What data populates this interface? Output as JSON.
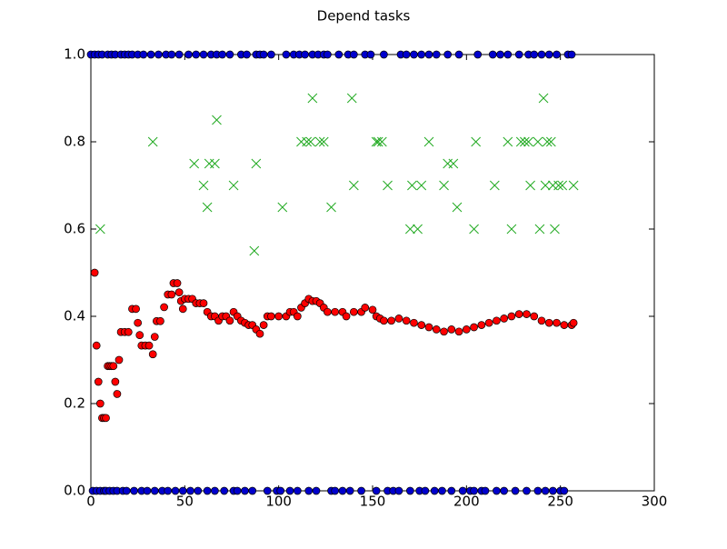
{
  "chart_data": {
    "type": "scatter",
    "title": "Depend tasks",
    "xlim": [
      0,
      300
    ],
    "ylim": [
      0,
      1
    ],
    "xticks": [
      0,
      50,
      100,
      150,
      200,
      250,
      300
    ],
    "yticks": [
      {
        "value": 0,
        "label": "0.0"
      },
      0.2,
      0.4,
      0.6,
      0.8,
      {
        "value": 1,
        "label": "1.0"
      }
    ],
    "grid": false,
    "series": [
      {
        "color": "#0000cc",
        "marker": "o",
        "x": [
          0,
          2,
          4,
          6,
          9,
          11,
          13,
          16,
          18,
          20,
          22,
          25,
          28,
          32,
          36,
          40,
          43,
          47,
          52,
          56,
          60,
          64,
          67,
          70,
          74,
          80,
          83,
          88,
          90,
          92,
          96,
          104,
          108,
          111,
          114,
          118,
          121,
          124,
          126,
          132,
          137,
          140,
          146,
          149,
          156,
          165,
          168,
          172,
          176,
          180,
          184,
          190,
          196,
          206,
          214,
          218,
          222,
          228,
          233,
          236,
          240,
          244,
          248,
          254,
          256,
          1,
          3,
          5,
          7,
          8,
          10,
          12,
          14,
          17,
          19,
          23,
          27,
          30,
          34,
          38,
          41,
          45,
          49,
          53,
          57,
          62,
          66,
          71,
          76,
          78,
          82,
          86,
          94,
          99,
          101,
          106,
          110,
          116,
          120,
          128,
          130,
          134,
          138,
          144,
          152,
          158,
          161,
          164,
          170,
          175,
          178,
          183,
          187,
          192,
          198,
          202,
          204,
          208,
          210,
          216,
          220,
          226,
          232,
          238,
          242,
          246,
          250,
          252
        ],
        "values": [
          1,
          1,
          1,
          1,
          1,
          1,
          1,
          1,
          1,
          1,
          1,
          1,
          1,
          1,
          1,
          1,
          1,
          1,
          1,
          1,
          1,
          1,
          1,
          1,
          1,
          1,
          1,
          1,
          1,
          1,
          1,
          1,
          1,
          1,
          1,
          1,
          1,
          1,
          1,
          1,
          1,
          1,
          1,
          1,
          1,
          1,
          1,
          1,
          1,
          1,
          1,
          1,
          1,
          1,
          1,
          1,
          1,
          1,
          1,
          1,
          1,
          1,
          1,
          1,
          1,
          0,
          0,
          0,
          0,
          0,
          0,
          0,
          0,
          0,
          0,
          0,
          0,
          0,
          0,
          0,
          0,
          0,
          0,
          0,
          0,
          0,
          0,
          0,
          0,
          0,
          0,
          0,
          0,
          0,
          0,
          0,
          0,
          0,
          0,
          0,
          0,
          0,
          0,
          0,
          0,
          0,
          0,
          0,
          0,
          0,
          0,
          0,
          0,
          0,
          0,
          0,
          0,
          0,
          0,
          0,
          0,
          0,
          0,
          0,
          0,
          0,
          0,
          0
        ]
      },
      {
        "color": "#22aa22",
        "marker": "x",
        "x": [
          5,
          33,
          55,
          60,
          62,
          63,
          66,
          67,
          76,
          87,
          88,
          102,
          112,
          115,
          117,
          118,
          122,
          124,
          128,
          139,
          140,
          152,
          153,
          155,
          158,
          170,
          171,
          174,
          176,
          180,
          188,
          190,
          193,
          195,
          204,
          205,
          215,
          222,
          224,
          229,
          231,
          233,
          234,
          238,
          239,
          241,
          242,
          243,
          245,
          246,
          247,
          249,
          251,
          257
        ],
        "values": [
          0.6,
          0.8,
          0.75,
          0.7,
          0.65,
          0.75,
          0.75,
          0.85,
          0.7,
          0.55,
          0.75,
          0.65,
          0.8,
          0.8,
          0.8,
          0.9,
          0.8,
          0.8,
          0.65,
          0.9,
          0.7,
          0.8,
          0.8,
          0.8,
          0.7,
          0.6,
          0.7,
          0.6,
          0.7,
          0.8,
          0.7,
          0.75,
          0.75,
          0.65,
          0.6,
          0.8,
          0.7,
          0.8,
          0.6,
          0.8,
          0.8,
          0.8,
          0.7,
          0.8,
          0.6,
          0.9,
          0.7,
          0.8,
          0.8,
          0.7,
          0.6,
          0.7,
          0.7,
          0.7
        ]
      },
      {
        "color": "#ff0000",
        "marker": "o",
        "x": [
          2,
          3,
          4,
          5,
          6,
          7,
          8,
          9,
          10,
          11,
          12,
          13,
          14,
          15,
          16,
          18,
          20,
          22,
          24,
          25,
          26,
          27,
          29,
          31,
          33,
          34,
          35,
          37,
          39,
          41,
          43,
          44,
          46,
          47,
          48,
          49,
          50,
          52,
          54,
          56,
          58,
          60,
          62,
          64,
          66,
          68,
          70,
          72,
          74,
          76,
          78,
          80,
          82,
          84,
          86,
          88,
          90,
          92,
          94,
          96,
          100,
          104,
          106,
          108,
          110,
          112,
          114,
          116,
          118,
          120,
          122,
          124,
          126,
          130,
          134,
          136,
          140,
          144,
          146,
          150,
          152,
          154,
          156,
          160,
          164,
          168,
          172,
          176,
          180,
          184,
          188,
          192,
          196,
          200,
          204,
          208,
          212,
          216,
          220,
          224,
          228,
          232,
          236,
          240,
          244,
          248,
          252,
          256,
          257
        ],
        "values": [
          0.5,
          0.333,
          0.25,
          0.2,
          0.167,
          0.167,
          0.167,
          0.286,
          0.286,
          0.286,
          0.286,
          0.25,
          0.222,
          0.3,
          0.364,
          0.364,
          0.364,
          0.417,
          0.417,
          0.385,
          0.357,
          0.333,
          0.333,
          0.333,
          0.313,
          0.353,
          0.389,
          0.389,
          0.421,
          0.45,
          0.45,
          0.476,
          0.476,
          0.455,
          0.435,
          0.417,
          0.44,
          0.44,
          0.44,
          0.43,
          0.43,
          0.43,
          0.41,
          0.4,
          0.4,
          0.39,
          0.4,
          0.4,
          0.39,
          0.41,
          0.4,
          0.39,
          0.385,
          0.38,
          0.38,
          0.37,
          0.36,
          0.38,
          0.4,
          0.4,
          0.4,
          0.4,
          0.41,
          0.41,
          0.4,
          0.42,
          0.43,
          0.44,
          0.435,
          0.435,
          0.43,
          0.42,
          0.41,
          0.41,
          0.41,
          0.4,
          0.41,
          0.41,
          0.42,
          0.415,
          0.4,
          0.395,
          0.39,
          0.39,
          0.395,
          0.39,
          0.385,
          0.38,
          0.375,
          0.37,
          0.365,
          0.37,
          0.365,
          0.37,
          0.375,
          0.38,
          0.385,
          0.39,
          0.395,
          0.4,
          0.405,
          0.405,
          0.4,
          0.39,
          0.385,
          0.385,
          0.38,
          0.38,
          0.385
        ]
      }
    ]
  }
}
